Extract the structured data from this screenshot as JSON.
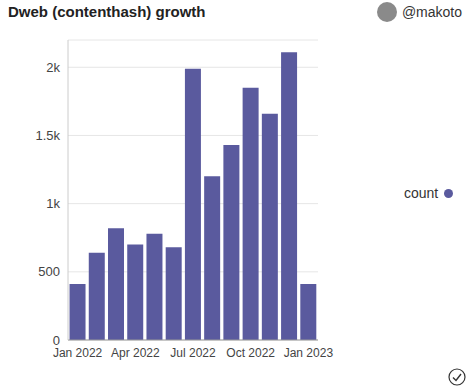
{
  "chart_data": {
    "type": "bar",
    "title": "Dweb (contenthash) growth",
    "subtitle": "@makoto",
    "categories": [
      "Jan 2022",
      null,
      null,
      "Apr 2022",
      null,
      null,
      "Jul 2022",
      null,
      null,
      "Oct 2022",
      null,
      null,
      "Jan 2023"
    ],
    "series": [
      {
        "name": "count",
        "color": "#5a5a9e",
        "values": [
          410,
          640,
          820,
          700,
          780,
          680,
          1990,
          1200,
          1430,
          1850,
          1660,
          2110,
          410
        ]
      }
    ],
    "ylim": [
      0,
      2200
    ],
    "yticks": [
      0,
      500,
      {
        "value": 1000,
        "label": "1k"
      },
      {
        "value": 1500,
        "label": "1.5k"
      },
      {
        "value": 2000,
        "label": "2k"
      }
    ],
    "grid": true,
    "legend": "right"
  }
}
